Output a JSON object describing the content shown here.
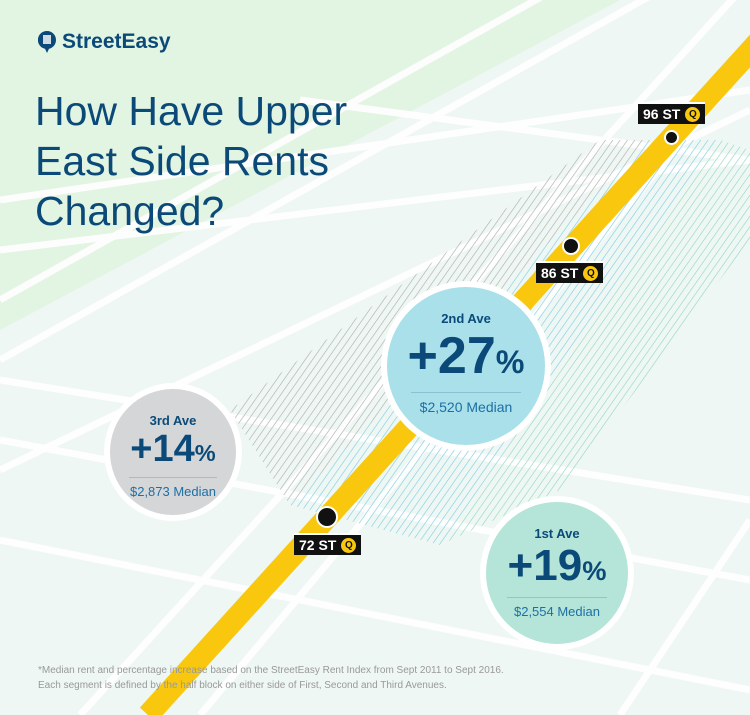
{
  "brand": {
    "name": "StreetEasy",
    "icon": "building-chat-icon"
  },
  "title": "How Have Upper East Side Rents Changed?",
  "avenues": [
    {
      "name": "3rd Ave",
      "change": "+14",
      "unit": "%",
      "median": "$2,873 Median",
      "color": "#d5d6d8"
    },
    {
      "name": "2nd Ave",
      "change": "+27",
      "unit": "%",
      "median": "$2,520 Median",
      "color": "#a9e0ea"
    },
    {
      "name": "1st Ave",
      "change": "+19",
      "unit": "%",
      "median": "$2,554 Median",
      "color": "#b4e5d8"
    }
  ],
  "stations": [
    {
      "name": "96 ST",
      "line": "Q"
    },
    {
      "name": "86 ST",
      "line": "Q"
    },
    {
      "name": "72 ST",
      "line": "Q"
    }
  ],
  "footnote": [
    "*Median rent and percentage increase based on the StreetEasy Rent Index from Sept 2011 to Sept 2016.",
    "Each segment is defined by the half block on either side of First, Second and Third Avenues."
  ],
  "colors": {
    "text": "#0b4a78",
    "subway": "#f9c80e",
    "background": "#eef7f3"
  }
}
